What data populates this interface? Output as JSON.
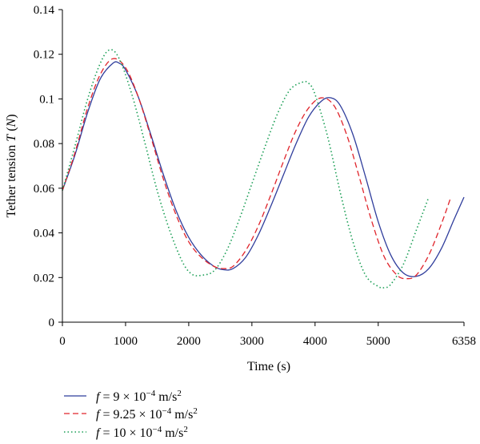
{
  "chart_data": {
    "type": "line",
    "xlabel": "Time (s)",
    "ylabel": {
      "prefix": "Tether tension ",
      "symbol": "T",
      "unit_open": " (",
      "unit": "N",
      "unit_close": ")"
    },
    "xlim": [
      0,
      6358
    ],
    "ylim": [
      0,
      0.14
    ],
    "x_ticks": [
      0,
      1000,
      2000,
      3000,
      4000,
      5000,
      6358
    ],
    "x_tick_labels": [
      "0",
      "1000",
      "2000",
      "3000",
      "4000",
      "5000",
      "6358"
    ],
    "y_ticks": [
      0,
      0.02,
      0.04,
      0.06,
      0.08,
      0.1,
      0.12,
      0.14
    ],
    "y_tick_labels": [
      "0",
      "0.02",
      "0.04",
      "0.06",
      "0.08",
      "0.1",
      "0.12",
      "0.14"
    ],
    "grid": false,
    "legend_position": "bottom-left",
    "series": [
      {
        "legend": {
          "sym": "f",
          "eq": " = 9 × 10",
          "exp": "−4",
          "unit": " m/s",
          "sq": "2"
        },
        "color": "#2f3d9c",
        "style": "solid",
        "x": [
          0,
          200,
          400,
          600,
          800,
          900,
          1000,
          1200,
          1400,
          1600,
          1800,
          2000,
          2200,
          2400,
          2550,
          2700,
          2900,
          3100,
          3300,
          3500,
          3700,
          3900,
          4100,
          4250,
          4400,
          4600,
          4800,
          5000,
          5200,
          5400,
          5600,
          5800,
          6000,
          6200,
          6358
        ],
        "values": [
          0.059,
          0.075,
          0.094,
          0.109,
          0.116,
          0.116,
          0.113,
          0.101,
          0.084,
          0.066,
          0.05,
          0.038,
          0.03,
          0.025,
          0.0235,
          0.024,
          0.029,
          0.039,
          0.052,
          0.066,
          0.08,
          0.092,
          0.099,
          0.1005,
          0.097,
          0.084,
          0.065,
          0.045,
          0.03,
          0.022,
          0.0205,
          0.024,
          0.033,
          0.046,
          0.056
        ]
      },
      {
        "legend": {
          "sym": "f",
          "eq": " = 9.25 × 10",
          "exp": "−4",
          "unit": " m/s",
          "sq": "2"
        },
        "color": "#e0242b",
        "style": "dashed",
        "x": [
          0,
          200,
          400,
          600,
          800,
          1000,
          1200,
          1400,
          1600,
          1800,
          2000,
          2200,
          2400,
          2550,
          2700,
          2900,
          3100,
          3300,
          3500,
          3700,
          3900,
          4100,
          4300,
          4500,
          4700,
          4900,
          5100,
          5300,
          5450,
          5600,
          5800,
          6000,
          6150
        ],
        "values": [
          0.059,
          0.076,
          0.096,
          0.111,
          0.118,
          0.114,
          0.101,
          0.083,
          0.064,
          0.048,
          0.036,
          0.029,
          0.025,
          0.024,
          0.025,
          0.032,
          0.043,
          0.057,
          0.072,
          0.086,
          0.096,
          0.1005,
          0.097,
          0.084,
          0.065,
          0.045,
          0.029,
          0.021,
          0.0195,
          0.021,
          0.03,
          0.044,
          0.056
        ]
      },
      {
        "legend": {
          "sym": "f",
          "eq": " = 10 × 10",
          "exp": "−4",
          "unit": " m/s",
          "sq": "2"
        },
        "color": "#1a9e55",
        "style": "dotted",
        "x": [
          0,
          200,
          400,
          600,
          750,
          900,
          1100,
          1300,
          1500,
          1700,
          1900,
          2050,
          2200,
          2400,
          2600,
          2800,
          3000,
          3200,
          3400,
          3600,
          3800,
          3900,
          4000,
          4200,
          4400,
          4600,
          4800,
          5000,
          5100,
          5200,
          5400,
          5600,
          5800
        ],
        "values": [
          0.059,
          0.079,
          0.1,
          0.116,
          0.122,
          0.118,
          0.102,
          0.081,
          0.059,
          0.041,
          0.027,
          0.0215,
          0.021,
          0.023,
          0.032,
          0.046,
          0.062,
          0.078,
          0.093,
          0.104,
          0.1075,
          0.107,
          0.102,
          0.083,
          0.058,
          0.036,
          0.021,
          0.016,
          0.0155,
          0.017,
          0.026,
          0.041,
          0.056
        ]
      }
    ]
  }
}
